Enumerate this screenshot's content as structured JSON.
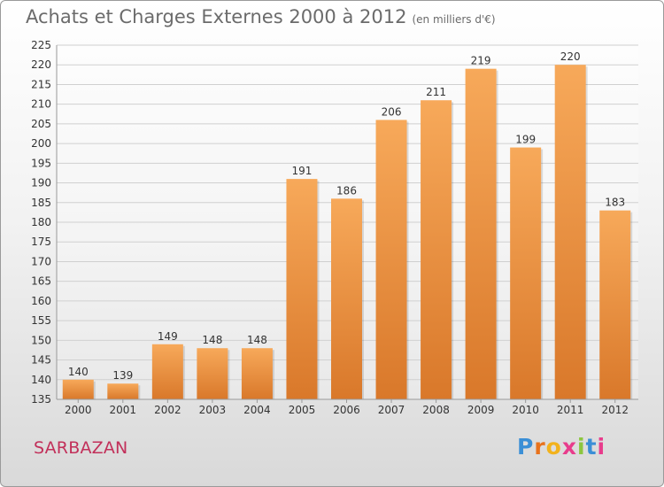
{
  "header": {
    "title": "Achats et Charges Externes 2000 à 2012",
    "unit": "(en milliers d'€)"
  },
  "footer": {
    "location": "SARBAZAN",
    "logo_text": "Proxiti"
  },
  "colors": {
    "bar_light": "#f7a95a",
    "bar_dark": "#d9782a",
    "grid": "#d0d0d0",
    "axis_text": "#333333",
    "location": "#c2305a"
  },
  "chart_data": {
    "type": "bar",
    "title": "Achats et Charges Externes 2000 à 2012",
    "subtitle": "(en milliers d'€)",
    "xlabel": "",
    "ylabel": "",
    "categories": [
      "2000",
      "2001",
      "2002",
      "2003",
      "2004",
      "2005",
      "2006",
      "2007",
      "2008",
      "2009",
      "2010",
      "2011",
      "2012"
    ],
    "values": [
      140,
      139,
      149,
      148,
      148,
      191,
      186,
      206,
      211,
      219,
      199,
      220,
      183
    ],
    "ylim": [
      135,
      225
    ],
    "ytick_step": 5,
    "grid": true,
    "legend": "none"
  }
}
